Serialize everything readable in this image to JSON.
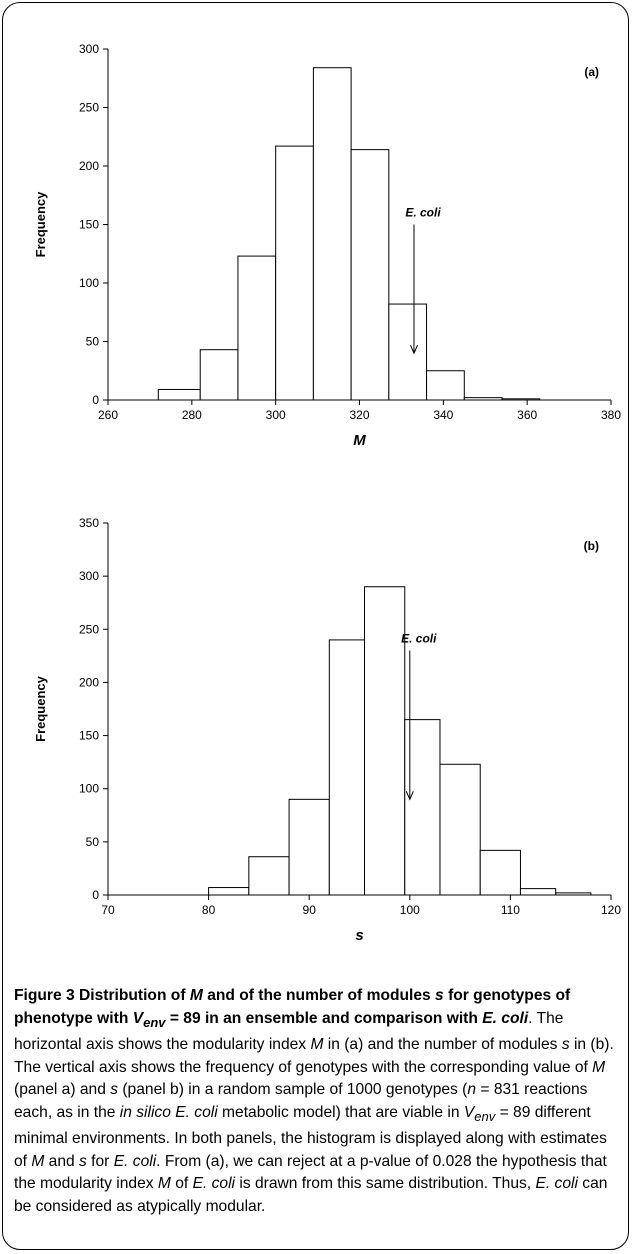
{
  "chart_data": [
    {
      "type": "bar",
      "panel_label": "(a)",
      "xlabel": "M",
      "ylabel": "Frequency",
      "xlim": [
        260,
        380
      ],
      "ylim": [
        0,
        300
      ],
      "xticks": [
        260,
        280,
        300,
        320,
        340,
        360,
        380
      ],
      "yticks": [
        0,
        50,
        100,
        150,
        200,
        250,
        300
      ],
      "bins": [
        {
          "x0": 272,
          "x1": 282,
          "value": 9
        },
        {
          "x0": 282,
          "x1": 291,
          "value": 43
        },
        {
          "x0": 291,
          "x1": 300,
          "value": 123
        },
        {
          "x0": 300,
          "x1": 309,
          "value": 217
        },
        {
          "x0": 309,
          "x1": 318,
          "value": 284
        },
        {
          "x0": 318,
          "x1": 327,
          "value": 214
        },
        {
          "x0": 327,
          "x1": 336,
          "value": 82
        },
        {
          "x0": 336,
          "x1": 345,
          "value": 25
        },
        {
          "x0": 345,
          "x1": 354,
          "value": 2
        },
        {
          "x0": 354,
          "x1": 363,
          "value": 1
        }
      ],
      "annotation": {
        "text": "E. coli",
        "x": 333,
        "y_top": 150,
        "y_bottom": 40
      },
      "grid": false
    },
    {
      "type": "bar",
      "panel_label": "(b)",
      "xlabel": "s",
      "ylabel": "Frequency",
      "xlim": [
        70,
        120
      ],
      "ylim": [
        0,
        350
      ],
      "xticks": [
        70,
        80,
        90,
        100,
        110,
        120
      ],
      "yticks": [
        0,
        50,
        100,
        150,
        200,
        250,
        300,
        350
      ],
      "bins": [
        {
          "x0": 80,
          "x1": 84,
          "value": 7
        },
        {
          "x0": 84,
          "x1": 88,
          "value": 36
        },
        {
          "x0": 88,
          "x1": 92,
          "value": 90
        },
        {
          "x0": 92,
          "x1": 95.5,
          "value": 240
        },
        {
          "x0": 95.5,
          "x1": 99.5,
          "value": 290
        },
        {
          "x0": 99.5,
          "x1": 103,
          "value": 165
        },
        {
          "x0": 103,
          "x1": 107,
          "value": 123
        },
        {
          "x0": 107,
          "x1": 111,
          "value": 42
        },
        {
          "x0": 111,
          "x1": 114.5,
          "value": 6
        },
        {
          "x0": 114.5,
          "x1": 118,
          "value": 2
        }
      ],
      "annotation": {
        "text": "E. coli",
        "x": 100,
        "y_top": 230,
        "y_bottom": 90
      },
      "grid": false
    }
  ],
  "caption": {
    "figure_label": "Figure 3",
    "title_1": " Distribution of ",
    "title_M": "M",
    "title_2": " and of the number of modules ",
    "title_s": "s",
    "title_3": " for genotypes of phenotype with ",
    "title_V": "V",
    "title_env": "env",
    "title_4": " = 89 in an ensemble and comparison with ",
    "title_ecoli": "E. coli",
    "p1": ". The horizontal axis shows the modularity index ",
    "p1_M": "M",
    "p2": " in (a) and the number of modules ",
    "p2_s": "s",
    "p3": " in (b). The vertical axis shows the frequency of genotypes with the corresponding value of ",
    "p3_M": "M",
    "p4": " (panel a) and ",
    "p4_s": "s",
    "p5": " (panel b) in a random sample of 1000 genotypes (",
    "p5_n": "n",
    "p6": " = 831 reactions each, as in the ",
    "p6_in_silico": "in silico E. coli",
    "p7": " metabolic model) that are viable in ",
    "p7_V": "V",
    "p7_env": "env",
    "p8": " = 89 different minimal environments. In both panels, the histogram is displayed along with estimates of ",
    "p8_M": "M",
    "p9": " and ",
    "p9_s": "s",
    "p10": " for ",
    "p10_ecoli": "E. coli",
    "p11": ". From (a), we can reject at a p-value of 0.028 the hypothesis that the modularity index ",
    "p11_M": "M",
    "p12": " of ",
    "p12_ecoli": "E. coli",
    "p13": " is drawn from this same distribution. Thus, ",
    "p13_ecoli": "E. coli",
    "p14": " can be considered as atypically modular."
  }
}
